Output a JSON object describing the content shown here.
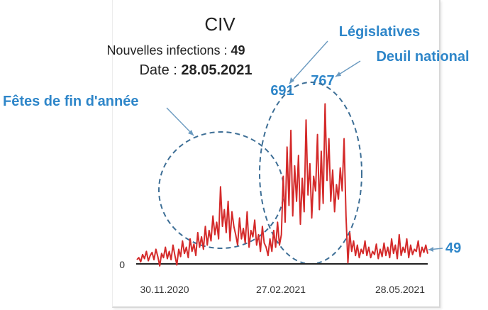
{
  "chart_data": {
    "type": "line",
    "title": "CIV",
    "info_label_1": "Nouvelles infections : ",
    "info_value_1": "49",
    "info_label_2": "Date : ",
    "info_value_2": "28.05.2021",
    "y_tick": "0",
    "x_ticks": [
      "30.11.2020",
      "27.02.2021",
      "28.05.2021"
    ],
    "annotations": {
      "holidays": "Fêtes de fin d'année",
      "elections": "Législatives",
      "mourning": "Deuil national",
      "peak1": "691",
      "peak2": "767",
      "last_value": "49"
    },
    "series": [
      {
        "color": "#d42a2a",
        "values": [
          20,
          30,
          10,
          45,
          25,
          60,
          15,
          40,
          55,
          20,
          70,
          35,
          -10,
          50,
          30,
          80,
          25,
          60,
          20,
          90,
          40,
          -5,
          70,
          35,
          110,
          50,
          80,
          30,
          120,
          60,
          95,
          40,
          150,
          80,
          130,
          70,
          180,
          90,
          160,
          110,
          230,
          140,
          200,
          120,
          370,
          180,
          260,
          150,
          300,
          110,
          250,
          180,
          140,
          90,
          220,
          120,
          170,
          100,
          250,
          80,
          160,
          130,
          210,
          90,
          140,
          60,
          180,
          100,
          80,
          40,
          120,
          60,
          160,
          80,
          200,
          90,
          140,
          420,
          200,
          560,
          280,
          640,
          230,
          470,
          300,
          520,
          190,
          410,
          250,
          690,
          330,
          480,
          220,
          420,
          350,
          620,
          260,
          540,
          290,
          767,
          400,
          600,
          300,
          450,
          250,
          380,
          310,
          460,
          350,
          600,
          230,
          5,
          150,
          60,
          110,
          40,
          90,
          30,
          70,
          50,
          110,
          40,
          80,
          30,
          60,
          45,
          95,
          25,
          70,
          35,
          100,
          40,
          80,
          30,
          120,
          50,
          90,
          25,
          140,
          40,
          80,
          55,
          120,
          30,
          90,
          45,
          70,
          60,
          110,
          35,
          80,
          55,
          90,
          49
        ]
      }
    ],
    "ylim": [
      0,
      850
    ]
  }
}
